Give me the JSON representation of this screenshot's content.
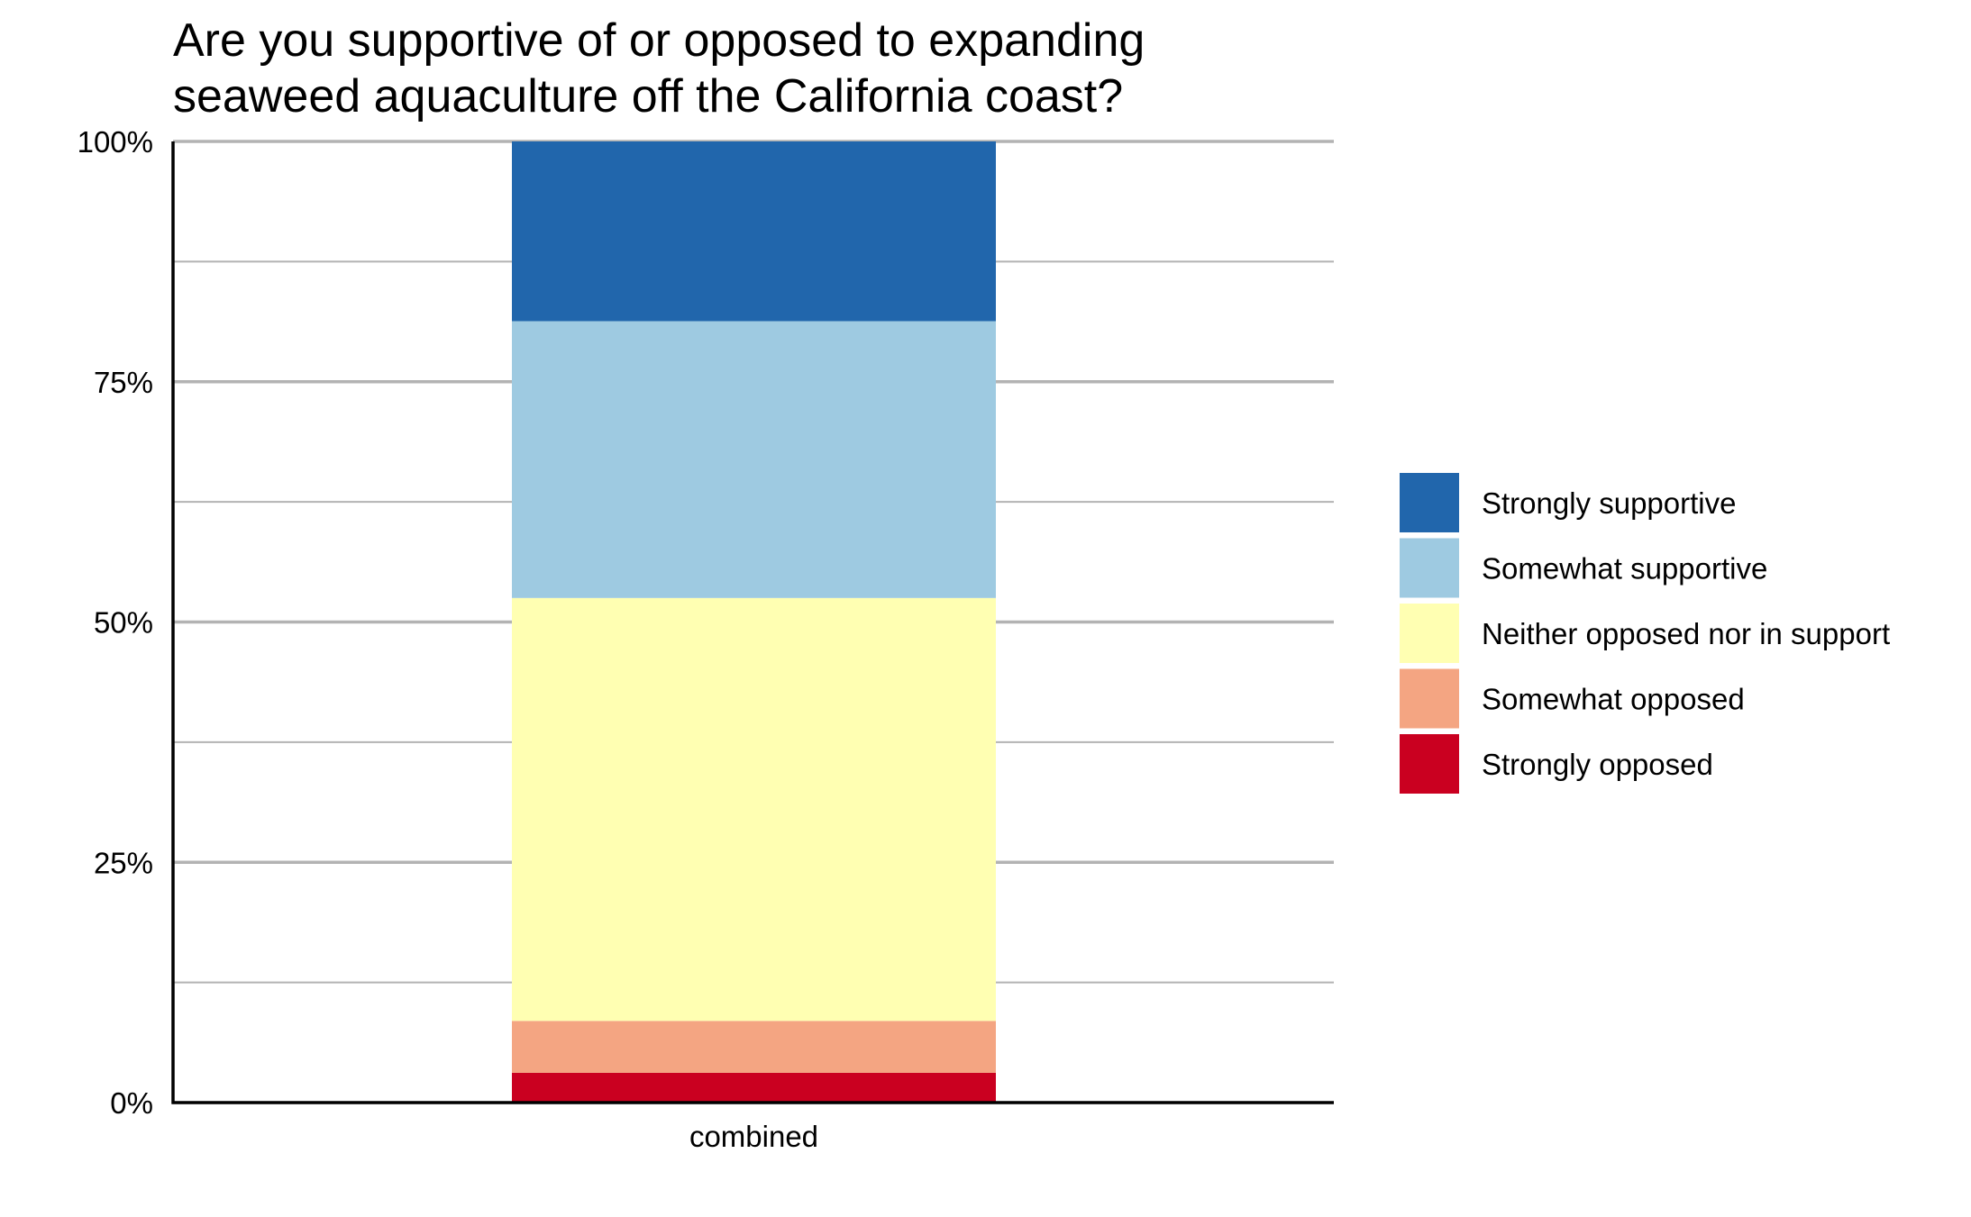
{
  "chart_data": {
    "type": "bar",
    "stacked": true,
    "percent": true,
    "title_lines": [
      "Are you supportive of or opposed to expanding",
      "seaweed aquaculture off the California coast?"
    ],
    "categories": [
      "combined"
    ],
    "xlabel": "",
    "ylabel": "",
    "ylim": [
      0,
      100
    ],
    "y_ticks": [
      0,
      25,
      50,
      75,
      100
    ],
    "y_tick_labels": [
      "0%",
      "25%",
      "50%",
      "75%",
      "100%"
    ],
    "y_minor_ticks": [
      12.5,
      37.5,
      62.5,
      87.5
    ],
    "grid": true,
    "legend_position": "right",
    "series": [
      {
        "name": "Strongly opposed",
        "values": [
          3.1
        ],
        "color": "#ca0020"
      },
      {
        "name": "Somewhat opposed",
        "values": [
          5.4
        ],
        "color": "#f4a582"
      },
      {
        "name": "Neither opposed nor in support",
        "values": [
          44.0
        ],
        "color": "#ffffb2"
      },
      {
        "name": "Somewhat supportive",
        "values": [
          28.8
        ],
        "color": "#9ecae1"
      },
      {
        "name": "Strongly supportive",
        "values": [
          18.7
        ],
        "color": "#2166ac"
      }
    ],
    "legend_order": [
      "Strongly supportive",
      "Somewhat supportive",
      "Neither opposed nor in support",
      "Somewhat opposed",
      "Strongly opposed"
    ],
    "colors": {
      "grid": "#b3b3b3",
      "axis": "#000000"
    }
  }
}
